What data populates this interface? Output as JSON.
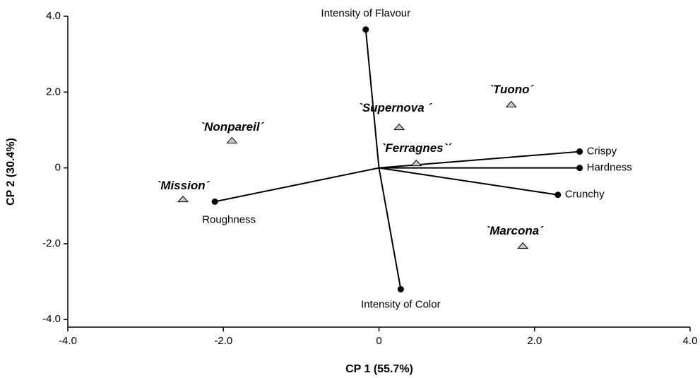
{
  "chart_data": {
    "type": "biplot",
    "x_label": "CP 1 (55.7%)",
    "y_label": "CP 2  (30.4%)",
    "xlim": [
      -4,
      4
    ],
    "ylim": [
      -4.2,
      4
    ],
    "xticks": [
      {
        "value": -4,
        "label": "-4.0"
      },
      {
        "value": -2,
        "label": "-2.0"
      },
      {
        "value": 0,
        "label": "0"
      },
      {
        "value": 2,
        "label": "2.0"
      },
      {
        "value": 4,
        "label": "4.0"
      }
    ],
    "yticks": [
      {
        "value": -4,
        "label": "-4.0"
      },
      {
        "value": -2,
        "label": "-2.0"
      },
      0,
      {
        "value": 2,
        "label": "2.0"
      },
      {
        "value": 4,
        "label": "4.0"
      }
    ],
    "vectors": [
      {
        "name": "Intensity of Flavour",
        "x": -0.17,
        "y": 3.65
      },
      {
        "name": "Crispy",
        "x": 2.58,
        "y": 0.43
      },
      {
        "name": "Hardness",
        "x": 2.58,
        "y": 0
      },
      {
        "name": "Crunchy",
        "x": 2.3,
        "y": -0.71
      },
      {
        "name": "Intensity of Color",
        "x": 0.28,
        "y": -3.2
      },
      {
        "name": "Roughness",
        "x": -2.11,
        "y": -0.89
      }
    ],
    "points": [
      {
        "name": "`Tuono´",
        "x": 1.7,
        "y": 1.68
      },
      {
        "name": "`Supernova ´",
        "x": 0.26,
        "y": 1.08
      },
      {
        "name": "`Nonpareil´",
        "x": -1.89,
        "y": 0.73
      },
      {
        "name": "`Ferragnes`´",
        "x": 0.48,
        "y": 0.13
      },
      {
        "name": "`Mission´",
        "x": -2.52,
        "y": -0.82
      },
      {
        "name": "`Marcona´",
        "x": 1.85,
        "y": -2.05
      }
    ]
  }
}
